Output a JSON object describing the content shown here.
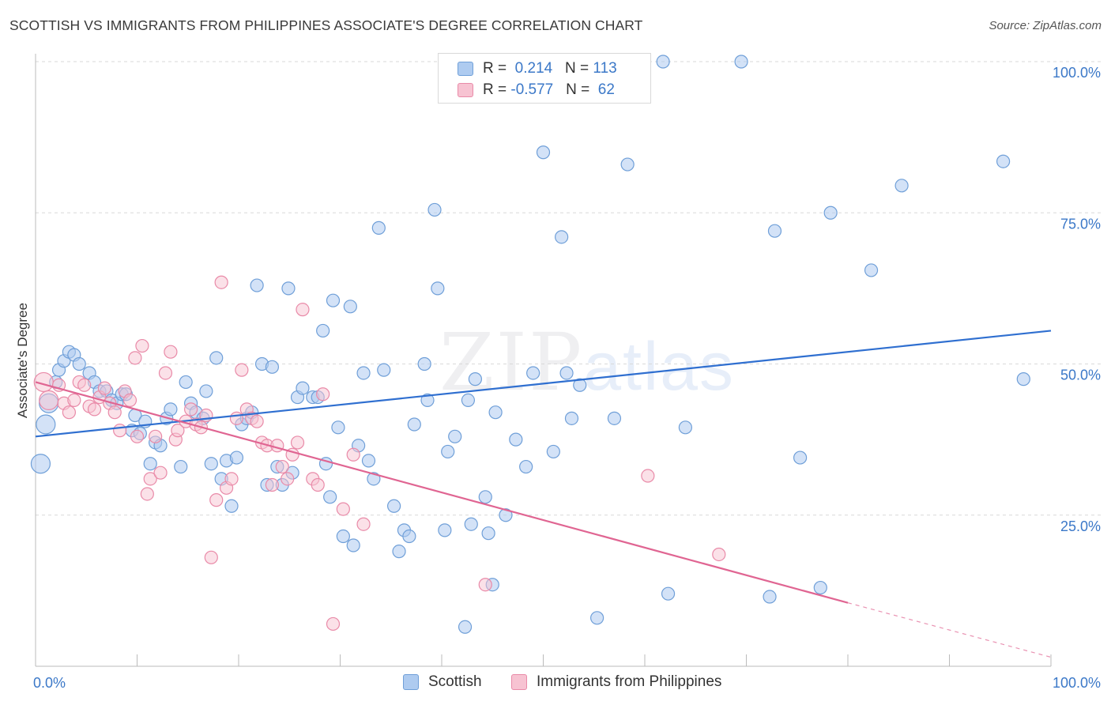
{
  "header": {
    "title": "SCOTTISH VS IMMIGRANTS FROM PHILIPPINES ASSOCIATE'S DEGREE CORRELATION CHART",
    "source": "Source: ZipAtlas.com"
  },
  "watermark": {
    "zip": "ZIP",
    "atlas": "atlas"
  },
  "legend": {
    "rows": [
      {
        "r_label": "R = ",
        "r_value": " 0.214",
        "n_label": "   N = ",
        "n_value": "113"
      },
      {
        "r_label": "R = ",
        "r_value": "-0.577",
        "n_label": "   N = ",
        "n_value": " 62"
      }
    ]
  },
  "bottom_legend": {
    "scottish": "Scottish",
    "philippines": "Immigrants from Philippines"
  },
  "colors": {
    "scottish_fill": "#aecbf0",
    "scottish_stroke": "#6f9fd8",
    "scottish_line": "#2f6fd0",
    "phil_fill": "#f7c3d2",
    "phil_stroke": "#e98aa8",
    "phil_line": "#e06592",
    "tick_label": "#3b78c8",
    "grid": "#d9d9d9"
  },
  "chart_data": {
    "type": "scatter",
    "title": "SCOTTISH VS IMMIGRANTS FROM PHILIPPINES ASSOCIATE'S DEGREE CORRELATION CHART",
    "xlabel": "",
    "ylabel": "Associate's Degree",
    "xlim": [
      0,
      100
    ],
    "ylim": [
      0,
      100
    ],
    "x_tick_labels": [
      "0.0%",
      "100.0%"
    ],
    "y_ticks": [
      25,
      50,
      75,
      100
    ],
    "y_tick_labels": [
      "25.0%",
      "50.0%",
      "75.0%",
      "100.0%"
    ],
    "grid": "horizontal dashed",
    "series": [
      {
        "name": "Scottish",
        "r": 0.214,
        "n": 113,
        "trend": {
          "x": [
            0,
            100
          ],
          "y": [
            38.0,
            55.5
          ]
        },
        "points": [
          [
            0.5,
            33.5
          ],
          [
            1.0,
            40.0
          ],
          [
            1.3,
            43.5
          ],
          [
            2.0,
            47.0
          ],
          [
            2.3,
            49.0
          ],
          [
            2.8,
            50.5
          ],
          [
            3.3,
            52.0
          ],
          [
            3.8,
            51.5
          ],
          [
            4.3,
            50.0
          ],
          [
            5.3,
            48.5
          ],
          [
            5.8,
            47.0
          ],
          [
            6.3,
            45.5
          ],
          [
            7.0,
            45.5
          ],
          [
            7.5,
            44.0
          ],
          [
            8.0,
            43.5
          ],
          [
            8.5,
            45.0
          ],
          [
            8.9,
            45.0
          ],
          [
            9.5,
            39.0
          ],
          [
            9.8,
            41.5
          ],
          [
            10.3,
            38.5
          ],
          [
            10.8,
            40.5
          ],
          [
            11.3,
            33.5
          ],
          [
            11.8,
            37.0
          ],
          [
            12.3,
            36.5
          ],
          [
            12.9,
            41.0
          ],
          [
            13.3,
            42.5
          ],
          [
            14.3,
            33.0
          ],
          [
            14.8,
            47.0
          ],
          [
            15.3,
            43.5
          ],
          [
            15.8,
            42.0
          ],
          [
            16.5,
            41.0
          ],
          [
            16.8,
            45.5
          ],
          [
            17.3,
            33.5
          ],
          [
            17.8,
            51.0
          ],
          [
            18.3,
            31.0
          ],
          [
            18.8,
            34.0
          ],
          [
            19.3,
            26.5
          ],
          [
            19.8,
            34.5
          ],
          [
            20.3,
            40.0
          ],
          [
            20.8,
            41.0
          ],
          [
            21.3,
            42.0
          ],
          [
            21.8,
            63.0
          ],
          [
            22.3,
            50.0
          ],
          [
            22.8,
            30.0
          ],
          [
            23.3,
            49.5
          ],
          [
            23.8,
            33.0
          ],
          [
            24.3,
            30.0
          ],
          [
            24.9,
            62.5
          ],
          [
            25.3,
            32.0
          ],
          [
            25.8,
            44.5
          ],
          [
            26.3,
            46.0
          ],
          [
            27.3,
            44.5
          ],
          [
            27.8,
            44.5
          ],
          [
            28.3,
            55.5
          ],
          [
            28.6,
            33.5
          ],
          [
            29.0,
            28.0
          ],
          [
            29.3,
            60.5
          ],
          [
            29.8,
            39.5
          ],
          [
            30.3,
            21.5
          ],
          [
            31.0,
            59.5
          ],
          [
            31.3,
            20.0
          ],
          [
            31.8,
            36.5
          ],
          [
            32.3,
            48.5
          ],
          [
            32.8,
            34.0
          ],
          [
            33.3,
            31.0
          ],
          [
            33.8,
            72.5
          ],
          [
            34.3,
            49.0
          ],
          [
            35.3,
            26.5
          ],
          [
            35.8,
            19.0
          ],
          [
            36.3,
            22.5
          ],
          [
            36.8,
            21.5
          ],
          [
            37.3,
            40.0
          ],
          [
            38.3,
            50.0
          ],
          [
            38.6,
            44.0
          ],
          [
            39.3,
            75.5
          ],
          [
            39.6,
            62.5
          ],
          [
            40.3,
            22.5
          ],
          [
            40.6,
            35.5
          ],
          [
            41.3,
            38.0
          ],
          [
            42.3,
            6.5
          ],
          [
            42.6,
            44.0
          ],
          [
            42.9,
            23.5
          ],
          [
            43.3,
            47.5
          ],
          [
            44.3,
            28.0
          ],
          [
            44.6,
            22.0
          ],
          [
            45.0,
            13.5
          ],
          [
            45.3,
            42.0
          ],
          [
            46.3,
            25.0
          ],
          [
            47.3,
            37.5
          ],
          [
            48.3,
            33.0
          ],
          [
            49.0,
            48.5
          ],
          [
            50.0,
            85.0
          ],
          [
            51.0,
            35.5
          ],
          [
            51.8,
            71.0
          ],
          [
            52.3,
            48.5
          ],
          [
            52.8,
            41.0
          ],
          [
            53.6,
            46.5
          ],
          [
            55.3,
            8.0
          ],
          [
            57.0,
            41.0
          ],
          [
            58.3,
            83.0
          ],
          [
            61.8,
            100.0
          ],
          [
            62.3,
            12.0
          ],
          [
            64.0,
            39.5
          ],
          [
            69.5,
            100.0
          ],
          [
            72.3,
            11.5
          ],
          [
            72.8,
            72.0
          ],
          [
            75.3,
            34.5
          ],
          [
            77.3,
            13.0
          ],
          [
            78.3,
            75.0
          ],
          [
            82.3,
            65.5
          ],
          [
            85.3,
            79.5
          ],
          [
            95.3,
            83.5
          ],
          [
            97.3,
            47.5
          ]
        ]
      },
      {
        "name": "Immigrants from Philippines",
        "r": -0.577,
        "n": 62,
        "trend": {
          "x": [
            0,
            80
          ],
          "y": [
            47.0,
            10.5
          ]
        },
        "trend_dashed": {
          "x": [
            80,
            100
          ],
          "y": [
            10.5,
            1.5
          ]
        },
        "points": [
          [
            0.8,
            47.0
          ],
          [
            1.3,
            44.0
          ],
          [
            2.3,
            46.5
          ],
          [
            2.8,
            43.5
          ],
          [
            3.3,
            42.0
          ],
          [
            3.8,
            44.0
          ],
          [
            4.3,
            47.0
          ],
          [
            4.8,
            46.5
          ],
          [
            5.3,
            43.0
          ],
          [
            5.8,
            42.5
          ],
          [
            6.3,
            44.5
          ],
          [
            6.8,
            46.0
          ],
          [
            7.3,
            43.5
          ],
          [
            7.8,
            42.0
          ],
          [
            8.3,
            39.0
          ],
          [
            8.8,
            45.5
          ],
          [
            9.3,
            44.0
          ],
          [
            9.8,
            51.0
          ],
          [
            10.0,
            38.0
          ],
          [
            10.5,
            53.0
          ],
          [
            11.0,
            28.5
          ],
          [
            11.3,
            31.0
          ],
          [
            11.8,
            38.0
          ],
          [
            12.3,
            32.0
          ],
          [
            12.8,
            48.5
          ],
          [
            13.3,
            52.0
          ],
          [
            13.8,
            37.5
          ],
          [
            14.0,
            39.0
          ],
          [
            14.8,
            40.5
          ],
          [
            15.3,
            42.5
          ],
          [
            15.8,
            40.0
          ],
          [
            16.3,
            39.5
          ],
          [
            16.8,
            41.5
          ],
          [
            17.3,
            18.0
          ],
          [
            17.8,
            27.5
          ],
          [
            18.3,
            63.5
          ],
          [
            18.8,
            29.5
          ],
          [
            19.3,
            31.0
          ],
          [
            19.8,
            41.0
          ],
          [
            20.3,
            49.0
          ],
          [
            20.8,
            42.5
          ],
          [
            21.3,
            41.0
          ],
          [
            21.8,
            40.5
          ],
          [
            22.3,
            37.0
          ],
          [
            22.8,
            36.5
          ],
          [
            23.3,
            30.0
          ],
          [
            23.8,
            36.5
          ],
          [
            24.3,
            33.0
          ],
          [
            24.8,
            31.0
          ],
          [
            25.3,
            35.0
          ],
          [
            25.8,
            37.0
          ],
          [
            26.3,
            59.0
          ],
          [
            27.3,
            31.0
          ],
          [
            27.8,
            30.0
          ],
          [
            28.3,
            45.0
          ],
          [
            29.3,
            7.0
          ],
          [
            30.3,
            26.0
          ],
          [
            31.3,
            35.0
          ],
          [
            32.3,
            23.5
          ],
          [
            44.3,
            13.5
          ],
          [
            60.3,
            31.5
          ],
          [
            67.3,
            18.5
          ]
        ]
      }
    ]
  }
}
